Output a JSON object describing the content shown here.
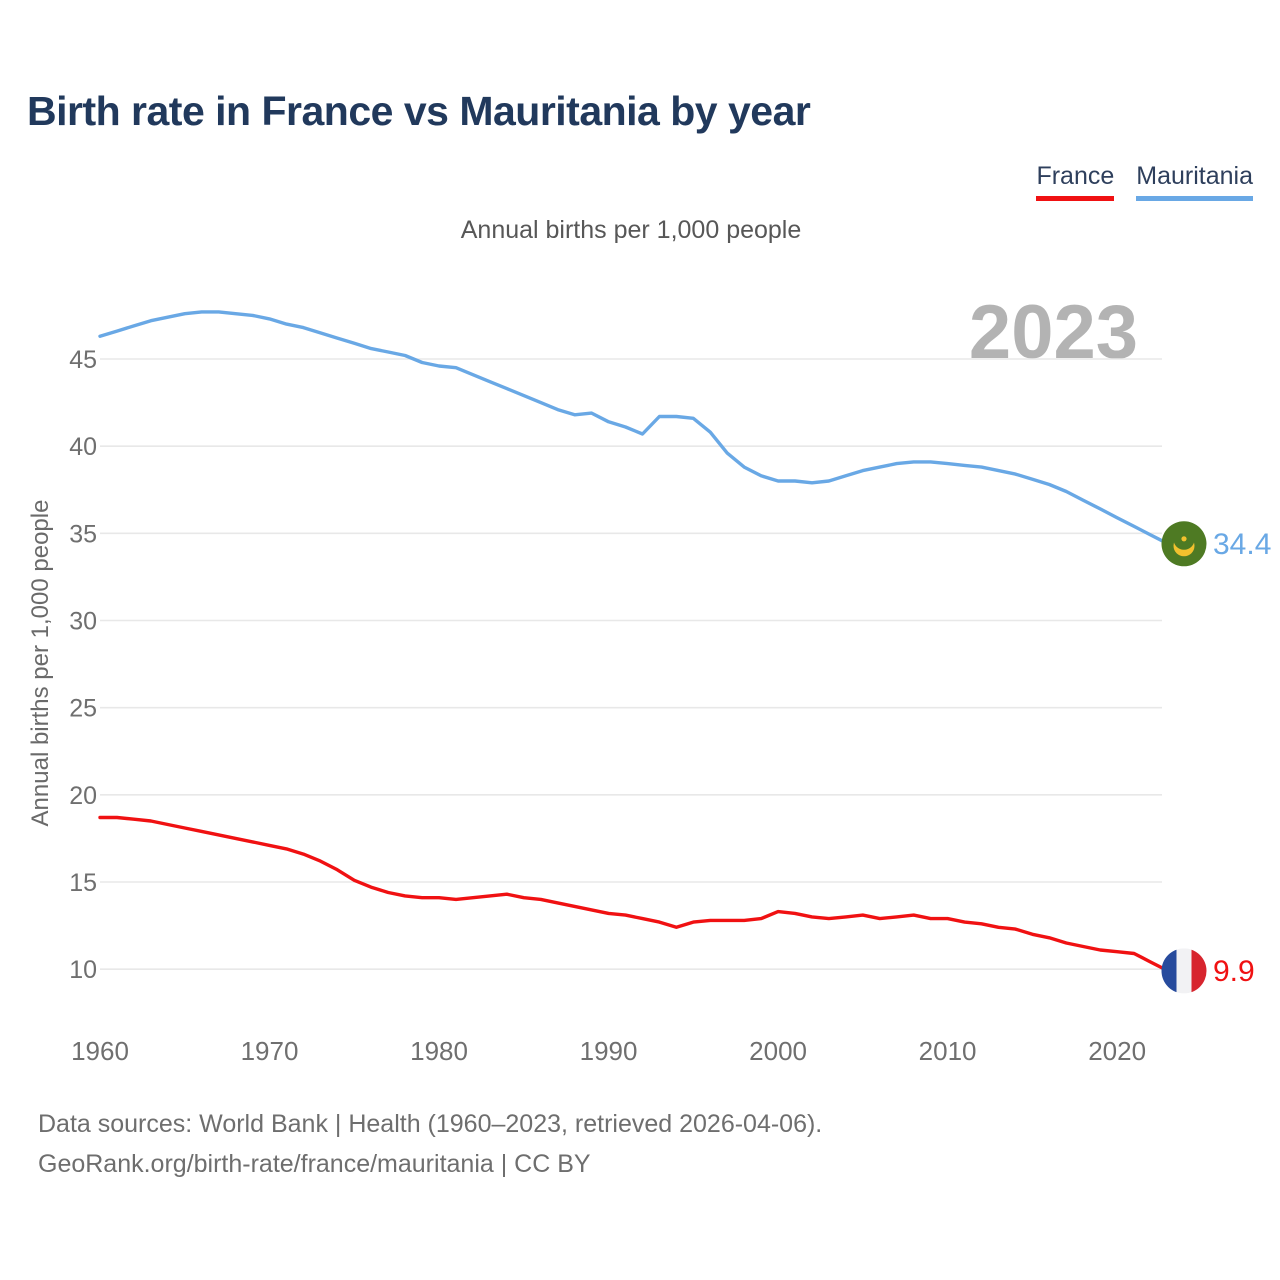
{
  "page": {
    "title": "Birth rate in France vs Mauritania by year"
  },
  "legend": {
    "items": [
      {
        "label": "France",
        "color": "#f01112"
      },
      {
        "label": "Mauritania",
        "color": "#69a8e5"
      }
    ]
  },
  "chart_data": {
    "type": "line",
    "title": "Birth rate in France vs Mauritania by year",
    "subtitle": "Annual births per 1,000 people",
    "ylabel": "Annual births per 1,000 people",
    "xlabel": "",
    "watermark": "2023",
    "grid": "horizontal",
    "legend_position": "top-right",
    "year_start": 1960,
    "year_end": 2023,
    "xticks": [
      1960,
      1970,
      1980,
      1990,
      2000,
      2010,
      2020
    ],
    "yticks": [
      10,
      15,
      20,
      25,
      30,
      35,
      40,
      45
    ],
    "ylim": [
      8.2,
      49.0
    ],
    "series": [
      {
        "name": "Mauritania",
        "color": "#69a8e5",
        "flag": "mauritania",
        "end_label": "34.4",
        "values": [
          46.3,
          46.6,
          46.9,
          47.2,
          47.4,
          47.6,
          47.7,
          47.7,
          47.6,
          47.5,
          47.3,
          47.0,
          46.8,
          46.5,
          46.2,
          45.9,
          45.6,
          45.4,
          45.2,
          44.8,
          44.6,
          44.5,
          44.1,
          43.7,
          43.3,
          42.9,
          42.5,
          42.1,
          41.8,
          41.9,
          41.4,
          41.1,
          40.7,
          41.7,
          41.7,
          41.6,
          40.8,
          39.6,
          38.8,
          38.3,
          38.0,
          38.0,
          37.9,
          38.0,
          38.3,
          38.6,
          38.8,
          39.0,
          39.1,
          39.1,
          39.0,
          38.9,
          38.8,
          38.6,
          38.4,
          38.1,
          37.8,
          37.4,
          36.9,
          36.4,
          35.9,
          35.4,
          34.9,
          34.4
        ]
      },
      {
        "name": "France",
        "color": "#f01112",
        "flag": "france",
        "end_label": "9.9",
        "values": [
          18.7,
          18.7,
          18.6,
          18.5,
          18.3,
          18.1,
          17.9,
          17.7,
          17.5,
          17.3,
          17.1,
          16.9,
          16.6,
          16.2,
          15.7,
          15.1,
          14.7,
          14.4,
          14.2,
          14.1,
          14.1,
          14.0,
          14.1,
          14.2,
          14.3,
          14.1,
          14.0,
          13.8,
          13.6,
          13.4,
          13.2,
          13.1,
          12.9,
          12.7,
          12.4,
          12.7,
          12.8,
          12.8,
          12.8,
          12.9,
          13.3,
          13.2,
          13.0,
          12.9,
          13.0,
          13.1,
          12.9,
          13.0,
          13.1,
          12.9,
          12.9,
          12.7,
          12.6,
          12.4,
          12.3,
          12.0,
          11.8,
          11.5,
          11.3,
          11.1,
          11.0,
          10.9,
          10.4,
          9.9
        ]
      }
    ],
    "colors": {
      "gridline": "#e8e8e8",
      "tick_label": "#6f6f6f",
      "axis_label": "#6a6a6a",
      "watermark": "#b3b3b3",
      "mauritania_flag_green": "#4e7a23",
      "mauritania_flag_gold": "#f2c12e",
      "france_flag_blue": "#274b9d",
      "france_flag_white": "#f2f2f4",
      "france_flag_red": "#d7252e"
    }
  },
  "footer": {
    "line1": "Data sources: World Bank | Health (1960–2023, retrieved 2026-04-06).",
    "line2": "GeoRank.org/birth-rate/france/mauritania | CC BY"
  }
}
